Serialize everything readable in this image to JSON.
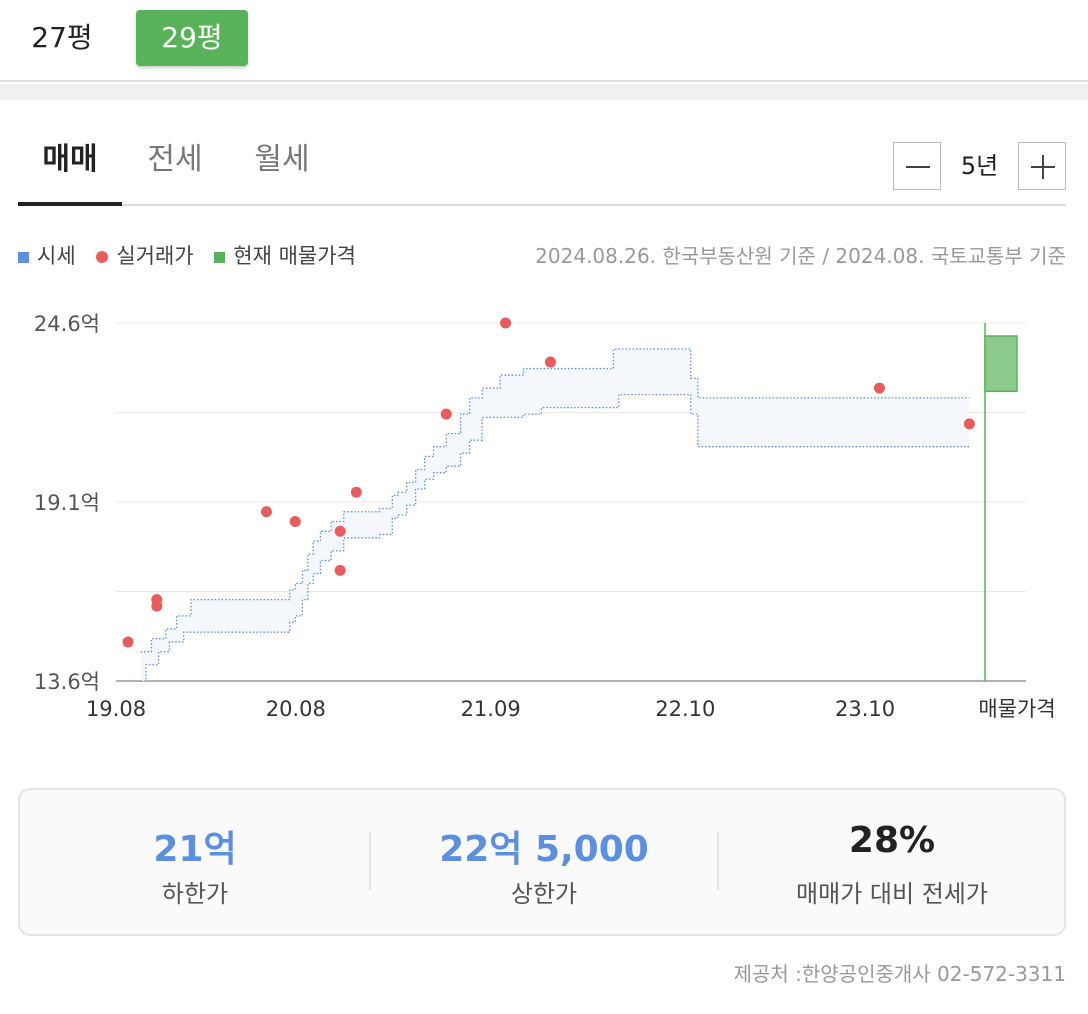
{
  "sizes": [
    {
      "label": "27평",
      "selected": false
    },
    {
      "label": "29평",
      "selected": true
    }
  ],
  "deal_tabs": [
    {
      "label": "매매",
      "selected": true
    },
    {
      "label": "전세",
      "selected": false
    },
    {
      "label": "월세",
      "selected": false
    }
  ],
  "period": {
    "label": "5년",
    "minus_icon": "minus-icon",
    "plus_icon": "plus-icon"
  },
  "legend": {
    "market": "시세",
    "actual": "실거래가",
    "listing": "현재 매물가격"
  },
  "source_note": "2024.08.26. 한국부동산원 기준 / 2024.08. 국토교통부 기준",
  "colors": {
    "market": "#5b8fe0",
    "actual": "#e85c5c",
    "listing": "#58b358",
    "band_fill": "#f4f7fc"
  },
  "chart_data": {
    "type": "area",
    "y_unit": "억",
    "y_ticks": [
      "24.6억",
      "19.1억",
      "13.6억"
    ],
    "y_tick_values": [
      24.6,
      19.1,
      13.6
    ],
    "ylim": [
      13.6,
      24.6
    ],
    "x_ticks": [
      {
        "label": "19.08",
        "x": 2019.583
      },
      {
        "label": "20.08",
        "x": 2020.583
      },
      {
        "label": "21.09",
        "x": 2021.667
      },
      {
        "label": "22.10",
        "x": 2022.75
      },
      {
        "label": "23.10",
        "x": 2023.75
      }
    ],
    "x_listing_label": "매물가격",
    "grid": true,
    "xlim": [
      2019.583,
      2024.417
    ],
    "market_band": {
      "x": [
        2019.72,
        2019.75,
        2019.78,
        2019.82,
        2019.86,
        2019.88,
        2019.92,
        2019.96,
        2020.0,
        2020.5,
        2020.55,
        2020.58,
        2020.62,
        2020.65,
        2020.68,
        2020.72,
        2020.78,
        2020.85,
        2021.0,
        2021.05,
        2021.12,
        2021.15,
        2021.2,
        2021.25,
        2021.3,
        2021.35,
        2021.42,
        2021.5,
        2021.55,
        2021.62,
        2021.68,
        2021.72,
        2021.85,
        2021.92,
        2021.95,
        2022.0,
        2022.35,
        2022.38,
        2022.75,
        2022.78,
        2022.82,
        2024.33
      ],
      "lower": [
        13.6,
        14.1,
        14.1,
        14.5,
        14.5,
        14.8,
        14.8,
        15.1,
        15.1,
        15.1,
        15.4,
        15.6,
        16.1,
        16.6,
        16.9,
        17.3,
        17.6,
        18.0,
        18.0,
        18.1,
        18.6,
        18.7,
        19.0,
        19.5,
        19.8,
        20.0,
        20.2,
        20.6,
        21.0,
        21.7,
        21.7,
        21.7,
        21.8,
        21.8,
        22.0,
        22.0,
        22.0,
        22.4,
        22.4,
        21.8,
        20.8,
        20.8
      ],
      "upper": [
        14.5,
        14.5,
        14.9,
        14.9,
        15.2,
        15.2,
        15.6,
        15.6,
        16.1,
        16.1,
        16.4,
        16.6,
        17.0,
        17.5,
        17.9,
        18.2,
        18.5,
        18.8,
        18.8,
        18.9,
        19.3,
        19.4,
        19.7,
        20.1,
        20.5,
        20.8,
        21.2,
        21.8,
        22.3,
        22.6,
        22.6,
        23.0,
        23.2,
        23.2,
        23.2,
        23.2,
        23.8,
        23.8,
        23.8,
        22.9,
        22.3,
        22.3
      ]
    },
    "actual_deals": [
      {
        "x": 2019.65,
        "y": 14.8
      },
      {
        "x": 2019.81,
        "y": 15.9
      },
      {
        "x": 2019.81,
        "y": 16.1
      },
      {
        "x": 2020.42,
        "y": 18.8
      },
      {
        "x": 2020.58,
        "y": 18.5
      },
      {
        "x": 2020.83,
        "y": 18.2
      },
      {
        "x": 2020.83,
        "y": 17.0
      },
      {
        "x": 2020.92,
        "y": 19.4
      },
      {
        "x": 2021.42,
        "y": 21.8
      },
      {
        "x": 2021.75,
        "y": 24.6
      },
      {
        "x": 2022.0,
        "y": 23.4
      },
      {
        "x": 2023.83,
        "y": 22.6
      },
      {
        "x": 2024.33,
        "y": 21.5
      }
    ],
    "current_listing": {
      "low": 22.5,
      "high": 24.2
    }
  },
  "summary": {
    "low": {
      "value": "21억",
      "label": "하한가"
    },
    "high": {
      "value": "22억 5,000",
      "label": "상한가"
    },
    "ratio": {
      "value": "28%",
      "label": "매매가 대비 전세가"
    }
  },
  "provider": "제공처 :한양공인중개사 02-572-3311"
}
